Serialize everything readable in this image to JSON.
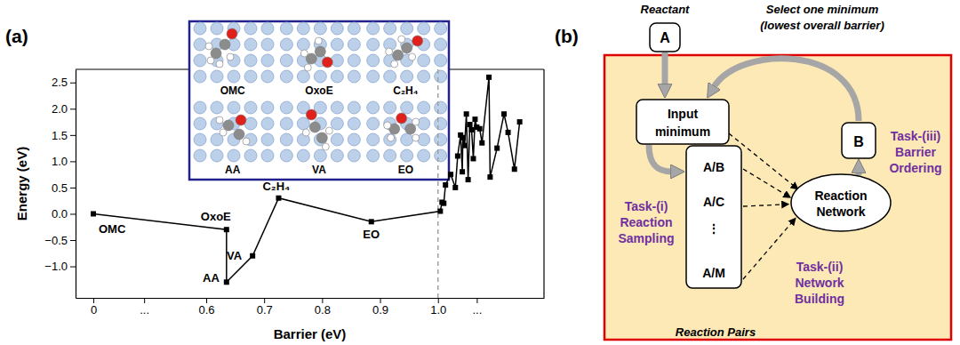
{
  "panel_labels": [
    "(a)",
    "(b)"
  ],
  "chart_data": {
    "type": "line",
    "xlabel": "Barrier (eV)",
    "ylabel": "Energy (eV)",
    "x": [
      0,
      0.635,
      0.635,
      0.68,
      0.725,
      0.885,
      1.004,
      1.007,
      1.01,
      1.013,
      1.022,
      1.03,
      1.034,
      1.039,
      1.042,
      1.043,
      1.046,
      1.049,
      1.052,
      1.055,
      1.058,
      1.061,
      1.064,
      1.067,
      1.072,
      1.076,
      1.088,
      1.09,
      1.102,
      1.114,
      1.121,
      1.132,
      1.141
    ],
    "values": [
      0,
      -0.3,
      -1.3,
      -0.8,
      0.3,
      -0.15,
      0.05,
      0.22,
      0.2,
      0.55,
      0.75,
      0.5,
      1.1,
      1.5,
      0.8,
      1.45,
      1.3,
      1.9,
      0.65,
      1.7,
      1.6,
      1.05,
      1.8,
      1.65,
      1.62,
      1.35,
      2.6,
      0.7,
      1.25,
      1.9,
      1.55,
      0.85,
      1.75
    ],
    "point_labels": [
      "OMC",
      "OxoE",
      "AA",
      "VA",
      "C₂H₄",
      "EO",
      null,
      null,
      null,
      null,
      null,
      null,
      null,
      null,
      null,
      null,
      null,
      null,
      null,
      null,
      null,
      null,
      null,
      null,
      null,
      null,
      null,
      null,
      null,
      null,
      null,
      null,
      null
    ],
    "color": "#000000",
    "marker": "square",
    "xlim": [
      -0.094,
      1.183
    ],
    "xticks": [
      0,
      {
        "value": 0.27,
        "label": "..."
      },
      0.6,
      0.7,
      0.8,
      0.9,
      {
        "value": 1,
        "label": "1.0"
      },
      {
        "value": 1.067,
        "label": "..."
      }
    ],
    "ylim": [
      -1.6,
      2.75
    ],
    "yticks": [
      {
        "value": -1,
        "label": "−1.0"
      },
      {
        "value": -0.5,
        "label": "−0.5"
      },
      {
        "value": 0,
        "label": "0.0"
      },
      0.5,
      {
        "value": 1,
        "label": "1.0"
      },
      1.5,
      {
        "value": 2,
        "label": "2.0"
      },
      2.5
    ],
    "grid": false,
    "reference_line": {
      "x": 1,
      "color": "#a0a0a0",
      "line_style": "dashed"
    },
    "inset_labels": [
      "OMC",
      "OxoE",
      "C₂H₄",
      "AA",
      "VA",
      "EO"
    ]
  },
  "diagram": {
    "reactant": {
      "caption": "Reactant",
      "label": "A"
    },
    "input_minimum": [
      "Input",
      "minimum"
    ],
    "product": "B",
    "loop_caption": [
      "Select one minimum",
      "(lowest overall barrier)"
    ],
    "reaction_pairs": {
      "items": [
        "A/B",
        "A/C",
        "⋮",
        "A/M"
      ],
      "caption": "Reaction Pairs"
    },
    "reaction_network": [
      "Reaction",
      "Network"
    ],
    "tasks": [
      [
        "Task-(i)",
        "Reaction",
        "Sampling"
      ],
      [
        "Task-(ii)",
        "Network",
        "Building"
      ],
      [
        "Task-(iii)",
        "Barrier",
        "Ordering"
      ]
    ]
  }
}
